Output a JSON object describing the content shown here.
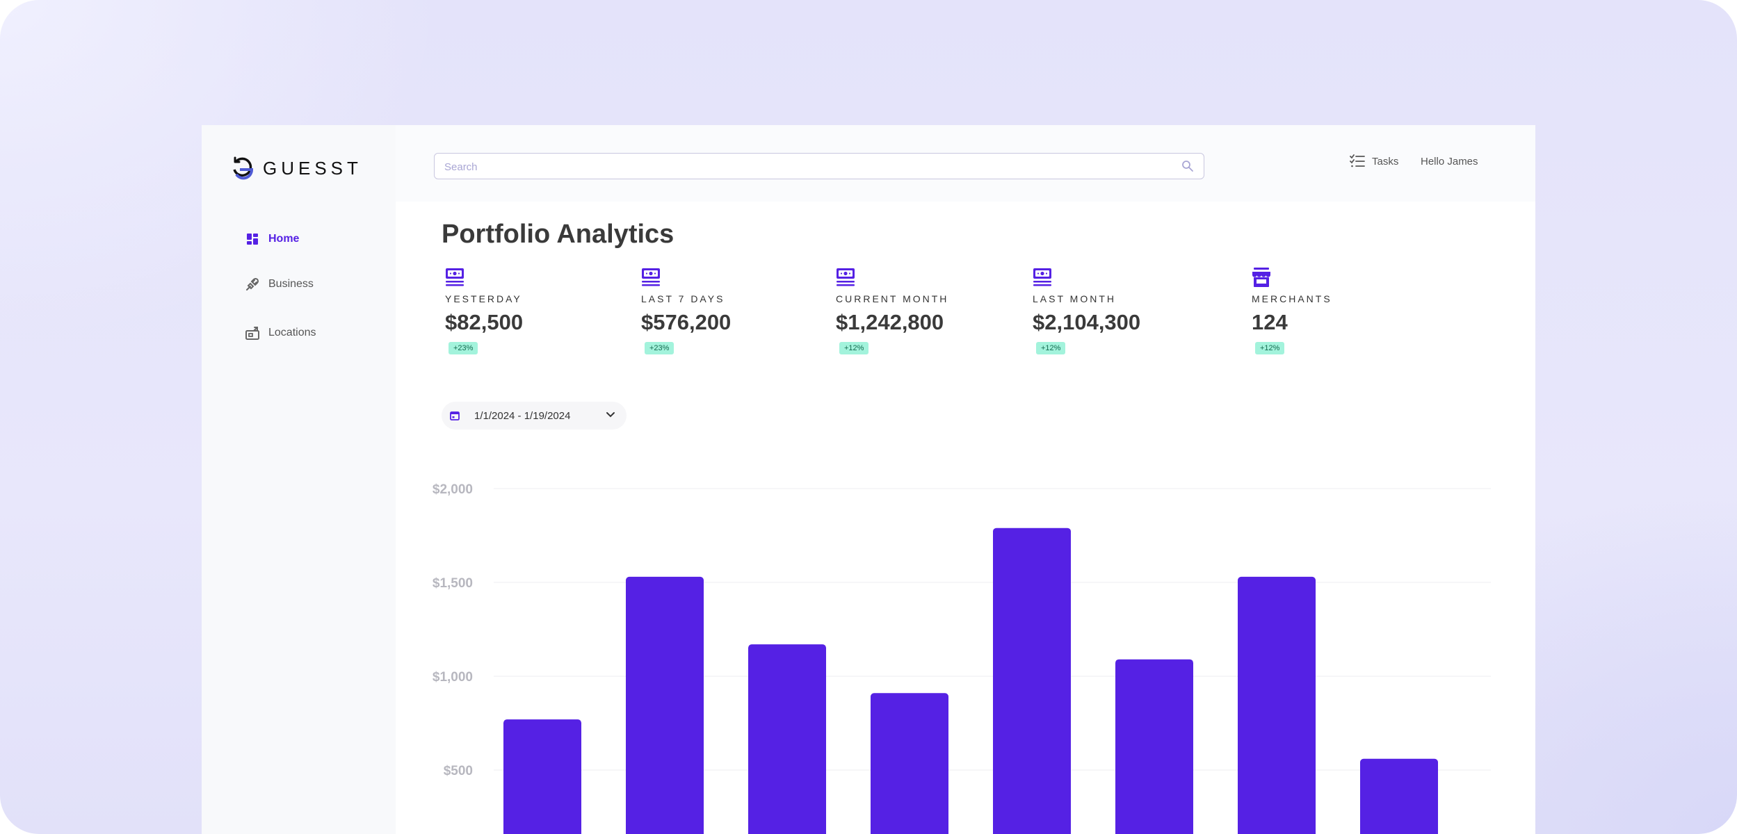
{
  "app": {
    "name": "GUESST"
  },
  "sidebar": {
    "items": [
      {
        "label": "Home",
        "icon": "dashboard-icon",
        "active": true
      },
      {
        "label": "Business",
        "icon": "plug-icon",
        "active": false
      },
      {
        "label": "Locations",
        "icon": "store-icon",
        "active": false
      }
    ]
  },
  "header": {
    "search_placeholder": "Search",
    "tasks_label": "Tasks",
    "greeting": "Hello James"
  },
  "page": {
    "title": "Portfolio Analytics"
  },
  "stats": [
    {
      "label": "YESTERDAY",
      "value": "$82,500",
      "change": "+23%",
      "icon": "cash-icon"
    },
    {
      "label": "LAST 7 DAYS",
      "value": "$576,200",
      "change": "+23%",
      "icon": "cash-icon"
    },
    {
      "label": "CURRENT MONTH",
      "value": "$1,242,800",
      "change": "+12%",
      "icon": "cash-icon"
    },
    {
      "label": "LAST MONTH",
      "value": "$2,104,300",
      "change": "+12%",
      "icon": "cash-icon"
    },
    {
      "label": "MERCHANTS",
      "value": "124",
      "change": "+12%",
      "icon": "storefront-icon"
    }
  ],
  "date_range": {
    "value": "1/1/2024 - 1/19/2024"
  },
  "colors": {
    "accent": "#5521e4",
    "badge_bg": "#a3f3dc",
    "badge_text": "#146b4f"
  },
  "chart_data": {
    "type": "bar",
    "y_tick_labels": [
      "$2,000",
      "$1,500",
      "$1,000",
      "$500"
    ],
    "y_ticks": [
      2000,
      1500,
      1000,
      500
    ],
    "ylim": [
      0,
      2000
    ],
    "grid": true,
    "values": [
      770,
      1530,
      1170,
      910,
      1790,
      1090,
      1530,
      560
    ],
    "color": "#5521e4"
  }
}
